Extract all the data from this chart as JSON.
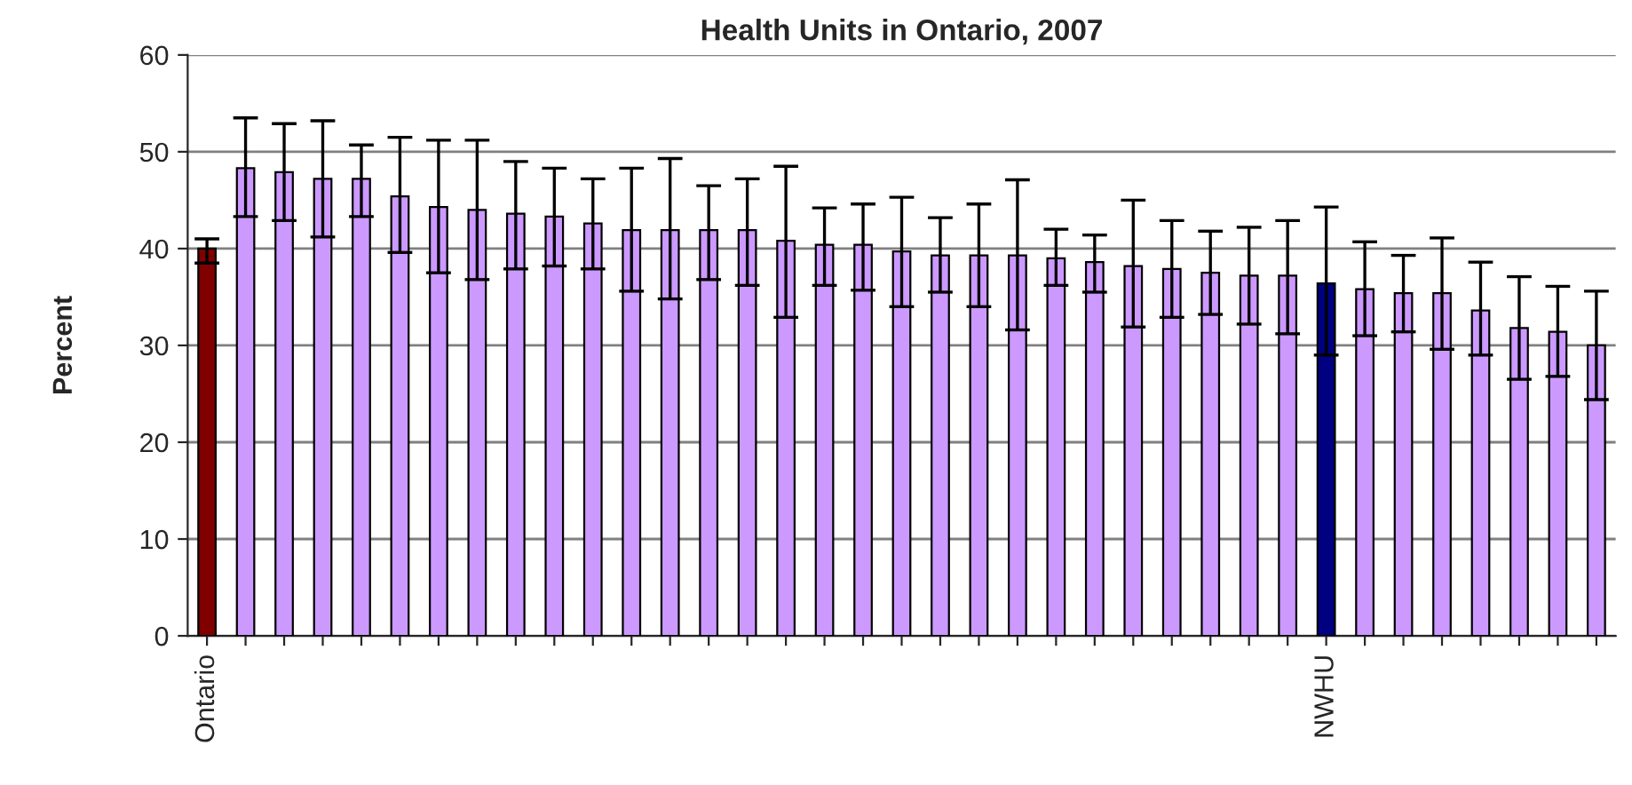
{
  "chart_data": {
    "type": "bar",
    "title": "Health Units in Ontario, 2007",
    "ylabel": "Percent",
    "categories": [
      "Ontario",
      null,
      null,
      null,
      null,
      null,
      null,
      null,
      null,
      null,
      null,
      null,
      null,
      null,
      null,
      null,
      null,
      null,
      null,
      null,
      null,
      null,
      null,
      null,
      null,
      null,
      null,
      null,
      null,
      "NWHU",
      null,
      null,
      null,
      null,
      null,
      null,
      null
    ],
    "values": [
      40.0,
      48.3,
      47.9,
      47.2,
      47.2,
      45.4,
      44.3,
      44.0,
      43.6,
      43.3,
      42.6,
      41.9,
      41.9,
      41.9,
      41.9,
      40.8,
      40.4,
      40.4,
      39.7,
      39.3,
      39.3,
      39.3,
      39.0,
      38.6,
      38.2,
      37.9,
      37.5,
      37.2,
      37.2,
      36.4,
      35.8,
      35.4,
      35.4,
      33.6,
      31.8,
      31.4,
      30.0
    ],
    "errors": [
      [
        38.5,
        41.0
      ],
      [
        43.3,
        53.5
      ],
      [
        42.9,
        52.9
      ],
      [
        41.2,
        53.2
      ],
      [
        43.3,
        50.7
      ],
      [
        39.6,
        51.5
      ],
      [
        37.5,
        51.2
      ],
      [
        36.8,
        51.2
      ],
      [
        37.9,
        49.0
      ],
      [
        38.2,
        48.3
      ],
      [
        37.9,
        47.2
      ],
      [
        35.6,
        48.3
      ],
      [
        34.8,
        49.3
      ],
      [
        36.8,
        46.5
      ],
      [
        36.2,
        47.2
      ],
      [
        32.9,
        48.5
      ],
      [
        36.2,
        44.2
      ],
      [
        35.7,
        44.6
      ],
      [
        34.0,
        45.3
      ],
      [
        35.5,
        43.2
      ],
      [
        34.0,
        44.6
      ],
      [
        31.6,
        47.1
      ],
      [
        36.2,
        42.0
      ],
      [
        35.5,
        41.4
      ],
      [
        31.9,
        45.0
      ],
      [
        32.9,
        42.9
      ],
      [
        33.2,
        41.8
      ],
      [
        32.2,
        42.2
      ],
      [
        31.2,
        42.9
      ],
      [
        29.0,
        44.3
      ],
      [
        31.0,
        40.7
      ],
      [
        31.4,
        39.3
      ],
      [
        29.6,
        41.1
      ],
      [
        29.0,
        38.6
      ],
      [
        26.5,
        37.1
      ],
      [
        26.8,
        36.1
      ],
      [
        24.4,
        35.6
      ]
    ],
    "colors": [
      "#800000",
      "#cc99ff",
      "#cc99ff",
      "#cc99ff",
      "#cc99ff",
      "#cc99ff",
      "#cc99ff",
      "#cc99ff",
      "#cc99ff",
      "#cc99ff",
      "#cc99ff",
      "#cc99ff",
      "#cc99ff",
      "#cc99ff",
      "#cc99ff",
      "#cc99ff",
      "#cc99ff",
      "#cc99ff",
      "#cc99ff",
      "#cc99ff",
      "#cc99ff",
      "#cc99ff",
      "#cc99ff",
      "#cc99ff",
      "#cc99ff",
      "#cc99ff",
      "#cc99ff",
      "#cc99ff",
      "#cc99ff",
      "#000080",
      "#cc99ff",
      "#cc99ff",
      "#cc99ff",
      "#cc99ff",
      "#cc99ff",
      "#cc99ff",
      "#cc99ff"
    ],
    "ylim": [
      0,
      60
    ],
    "yticks": [
      0,
      10,
      20,
      30,
      40,
      50,
      60
    ],
    "grid": "y"
  }
}
